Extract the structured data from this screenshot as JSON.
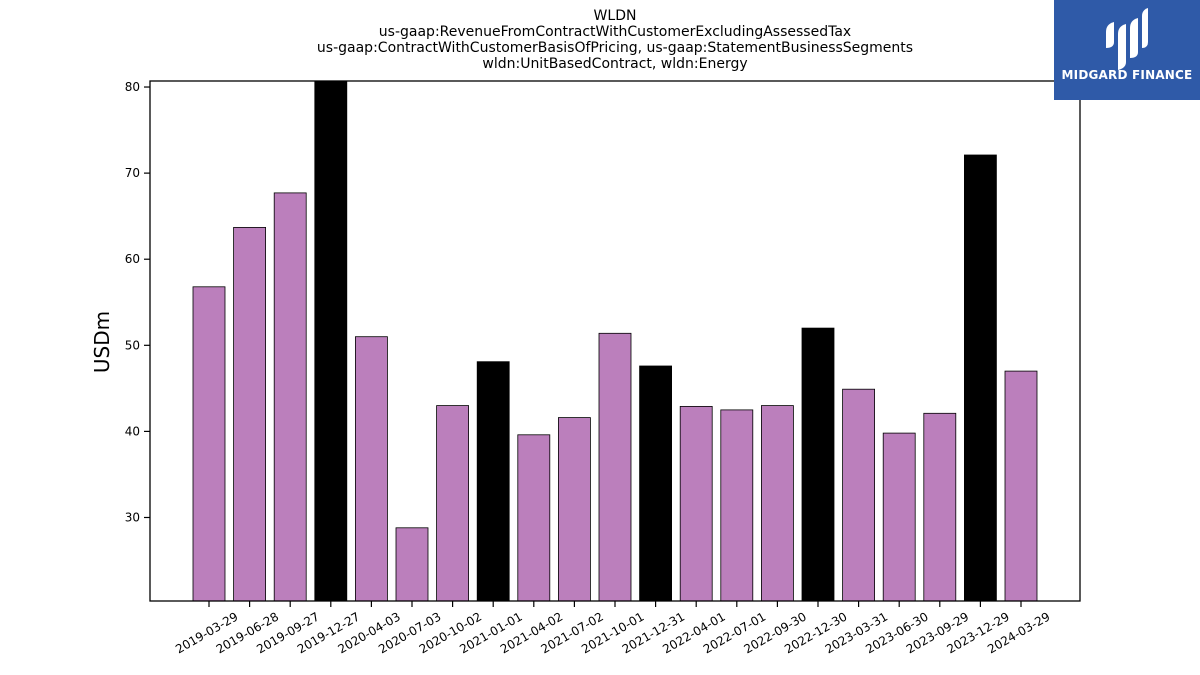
{
  "logo": {
    "text": "MIDGARD FINANCE",
    "color": "#2f5aa8"
  },
  "chart_data": {
    "type": "bar",
    "title_lines": [
      "WLDN",
      "us-gaap:RevenueFromContractWithCustomerExcludingAssessedTax",
      "us-gaap:ContractWithCustomerBasisOfPricing, us-gaap:StatementBusinessSegments",
      "wldn:UnitBasedContract, wldn:Energy"
    ],
    "ylabel": "USDm",
    "xlabel": "",
    "ylim": [
      20.3,
      80.7
    ],
    "yticks": [
      30,
      40,
      50,
      60,
      70,
      80
    ],
    "grid": false,
    "categories": [
      "2019-03-29",
      "2019-06-28",
      "2019-09-27",
      "2019-12-27",
      "2020-04-03",
      "2020-07-03",
      "2020-10-02",
      "2021-01-01",
      "2021-04-02",
      "2021-07-02",
      "2021-10-01",
      "2021-12-31",
      "2022-04-01",
      "2022-07-01",
      "2022-09-30",
      "2022-12-30",
      "2023-03-31",
      "2023-06-30",
      "2023-09-29",
      "2023-12-29",
      "2024-03-29"
    ],
    "values": [
      56.8,
      63.7,
      67.7,
      81.0,
      51.0,
      28.8,
      43.0,
      48.1,
      39.6,
      41.6,
      51.4,
      47.6,
      42.9,
      42.5,
      43.0,
      52.0,
      44.9,
      39.8,
      42.1,
      72.1,
      47.0
    ],
    "highlight": [
      false,
      false,
      false,
      true,
      false,
      false,
      false,
      true,
      false,
      false,
      false,
      true,
      false,
      false,
      false,
      true,
      false,
      false,
      false,
      true,
      false
    ],
    "colors": {
      "bar": "#bb7fbc",
      "highlight": "#000000",
      "edge": "#000000"
    }
  }
}
